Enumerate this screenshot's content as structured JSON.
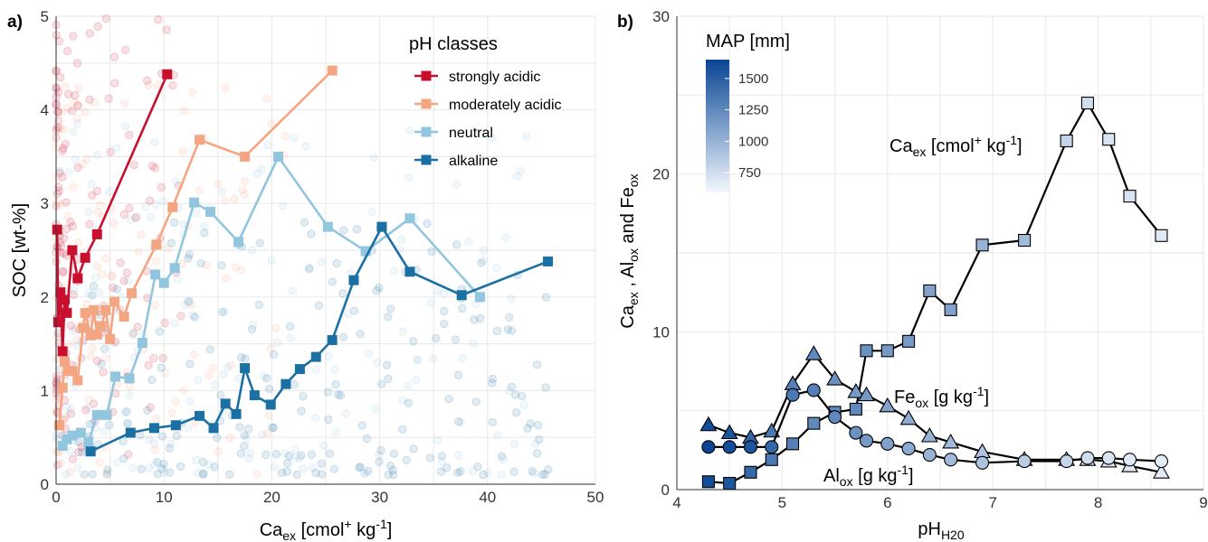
{
  "panel_a": {
    "letter": "a)",
    "chart_data": {
      "type": "scatter",
      "xlabel_main": "Ca",
      "xlabel_sub": "ex",
      "xlabel_rest": " [cmol",
      "xlabel_sup": "+",
      "xlabel_end": " kg",
      "xlabel_sup2": "-1",
      "xlabel_close": "]",
      "ylabel": "SOC [wt-%]",
      "xlim": [
        0,
        50
      ],
      "ylim": [
        0,
        5
      ],
      "xticks": [
        "0",
        "10",
        "20",
        "30",
        "40",
        "50"
      ],
      "yticks": [
        "0",
        "1",
        "2",
        "3",
        "4",
        "5"
      ],
      "legend_title": "pH classes",
      "legend_position": "top-right",
      "series": [
        {
          "name": "strongly acidic",
          "color": "#c8102e",
          "x": [
            0.1,
            0.2,
            0.4,
            0.6,
            0.8,
            1.0,
            1.5,
            2.0,
            2.7,
            3.8,
            10.3
          ],
          "y": [
            2.72,
            1.73,
            2.05,
            1.42,
            1.97,
            1.83,
            2.5,
            2.2,
            2.42,
            2.67,
            4.38
          ]
        },
        {
          "name": "moderately acidic",
          "color": "#f4a582",
          "x": [
            0.3,
            0.6,
            0.8,
            1.1,
            1.5,
            2.0,
            2.5,
            2.7,
            3.2,
            3.5,
            3.8,
            4.2,
            4.6,
            5.0,
            5.4,
            6.3,
            7.0,
            9.3,
            10.8,
            13.3,
            17.5,
            25.6
          ],
          "y": [
            0.63,
            1.03,
            1.31,
            1.21,
            1.21,
            1.11,
            1.67,
            1.83,
            1.59,
            1.86,
            1.6,
            1.69,
            1.86,
            1.55,
            1.95,
            1.79,
            2.04,
            2.56,
            2.96,
            3.68,
            3.5,
            4.42
          ],
          "faded": true
        },
        {
          "name": "neutral",
          "color": "#92c5de",
          "x": [
            0.6,
            1.0,
            1.5,
            2.3,
            3.0,
            3.8,
            4.7,
            5.5,
            6.8,
            8.0,
            9.2,
            10.0,
            11.0,
            12.8,
            14.3,
            16.9,
            20.6,
            25.2,
            28.7,
            32.8,
            39.3
          ],
          "y": [
            0.41,
            0.48,
            0.52,
            0.55,
            0.45,
            0.74,
            0.74,
            1.15,
            1.13,
            1.51,
            2.24,
            2.15,
            2.31,
            3.01,
            2.91,
            2.59,
            3.5,
            2.75,
            2.49,
            2.84,
            2.0
          ]
        },
        {
          "name": "alkaline",
          "color": "#1a6fa3",
          "x": [
            3.2,
            6.9,
            9.1,
            11.1,
            13.3,
            14.6,
            15.7,
            16.7,
            17.5,
            18.4,
            19.9,
            21.3,
            22.6,
            24.1,
            25.6,
            27.6,
            30.2,
            32.8,
            37.6,
            45.6
          ],
          "y": [
            0.35,
            0.55,
            0.6,
            0.63,
            0.73,
            0.6,
            0.86,
            0.75,
            1.24,
            0.95,
            0.85,
            1.07,
            1.23,
            1.36,
            1.54,
            2.18,
            2.75,
            2.27,
            2.02,
            2.38
          ]
        }
      ]
    }
  },
  "panel_b": {
    "letter": "b)",
    "chart_data": {
      "type": "scatter",
      "xlabel_main": "pH",
      "xlabel_sub": "H20",
      "ylabel_parts": [
        "Ca",
        "ex",
        " , Al",
        "ox",
        " and Fe",
        "ox"
      ],
      "xlim": [
        4,
        9
      ],
      "ylim": [
        0,
        30
      ],
      "xticks": [
        "4",
        "5",
        "6",
        "7",
        "8",
        "9"
      ],
      "yticks": [
        "0",
        "10",
        "20",
        "30"
      ],
      "colorbar": {
        "title": "MAP [mm]",
        "ticks": [
          "1500",
          "1250",
          "1000",
          "750"
        ],
        "range": [
          600,
          1650
        ],
        "tick_values": [
          1500,
          1250,
          1000,
          750
        ]
      },
      "annotations": [
        {
          "main": "Ca",
          "sub": "ex",
          "rest": " [cmol",
          "sup": "+",
          "end": " kg",
          "sup2": "-1",
          "close": "]"
        },
        {
          "main": "Fe",
          "sub": "ox",
          "rest": " [g kg",
          "sup": "",
          "end": "",
          "sup2": "-1",
          "close": "]"
        },
        {
          "main": "Al",
          "sub": "ox",
          "rest": " [g kg",
          "sup": "",
          "end": "",
          "sup2": "-1",
          "close": "]"
        }
      ],
      "series": [
        {
          "name": "Ca_ex",
          "marker": "square",
          "x": [
            4.3,
            4.5,
            4.7,
            4.9,
            5.1,
            5.3,
            5.5,
            5.7,
            5.8,
            6.0,
            6.2,
            6.4,
            6.6,
            6.9,
            7.3,
            7.7,
            7.9,
            8.1,
            8.3,
            8.6
          ],
          "y": [
            0.5,
            0.4,
            1.1,
            1.9,
            2.9,
            4.2,
            4.9,
            5.1,
            8.8,
            8.8,
            9.4,
            12.6,
            11.4,
            15.5,
            15.8,
            22.1,
            24.5,
            22.2,
            18.6,
            16.1
          ],
          "map": [
            1600,
            1550,
            1450,
            1350,
            1300,
            1250,
            1250,
            1250,
            1200,
            1150,
            1150,
            1100,
            1100,
            1000,
            950,
            800,
            750,
            700,
            700,
            680
          ]
        },
        {
          "name": "Fe_ox",
          "marker": "triangle",
          "x": [
            4.3,
            4.5,
            4.7,
            4.9,
            5.1,
            5.3,
            5.5,
            5.7,
            5.8,
            6.0,
            6.2,
            6.4,
            6.6,
            6.9,
            7.3,
            7.7,
            7.9,
            8.1,
            8.3,
            8.6
          ],
          "y": [
            4.1,
            3.6,
            3.3,
            3.7,
            6.7,
            8.6,
            7.0,
            6.2,
            6.0,
            5.3,
            4.5,
            3.4,
            3.0,
            2.4,
            1.9,
            1.9,
            1.9,
            1.8,
            1.5,
            1.1
          ],
          "map": [
            1600,
            1550,
            1450,
            1350,
            1300,
            1250,
            1200,
            1150,
            1150,
            1100,
            1050,
            1000,
            950,
            900,
            850,
            800,
            750,
            700,
            680,
            660
          ]
        },
        {
          "name": "Al_ox",
          "marker": "circle",
          "x": [
            4.3,
            4.5,
            4.7,
            4.9,
            5.1,
            5.3,
            5.5,
            5.7,
            5.8,
            6.0,
            6.2,
            6.4,
            6.6,
            6.9,
            7.3,
            7.7,
            7.9,
            8.1,
            8.3,
            8.6
          ],
          "y": [
            2.7,
            2.7,
            2.7,
            2.7,
            6.0,
            6.3,
            4.6,
            3.6,
            3.1,
            2.9,
            2.6,
            2.2,
            1.9,
            1.7,
            1.8,
            1.8,
            2.0,
            2.0,
            1.9,
            1.8
          ],
          "map": [
            1650,
            1600,
            1550,
            1450,
            1350,
            1300,
            1250,
            1200,
            1150,
            1100,
            1050,
            1000,
            950,
            900,
            850,
            800,
            750,
            700,
            680,
            660
          ]
        }
      ]
    }
  }
}
